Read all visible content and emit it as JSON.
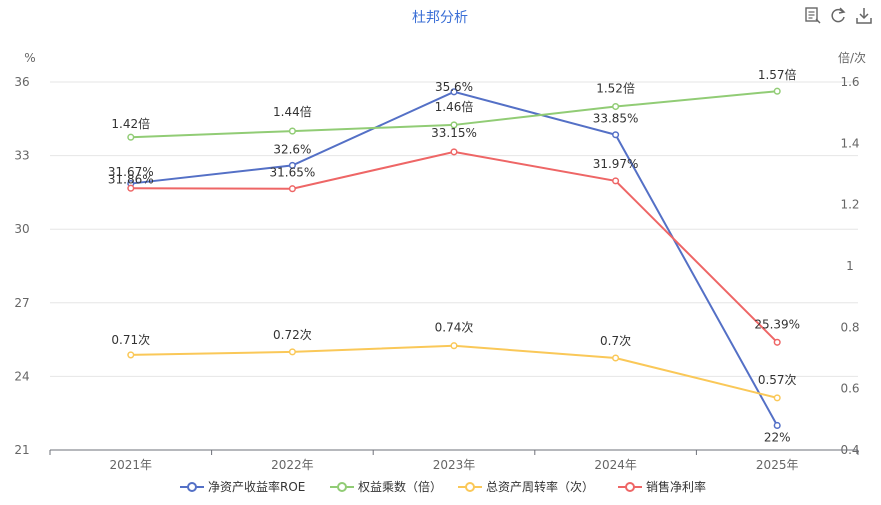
{
  "chart_data": {
    "type": "line",
    "title": "杜邦分析",
    "categories": [
      "2021年",
      "2022年",
      "2023年",
      "2024年",
      "2025年"
    ],
    "y_left": {
      "unit": "%",
      "min": 21,
      "max": 36,
      "ticks": [
        21,
        24,
        27,
        30,
        33,
        36
      ]
    },
    "y_right": {
      "unit": "倍/次",
      "min": 0.4,
      "max": 1.6,
      "ticks": [
        "0.4",
        "0.6",
        "0.8",
        "1",
        "1.2",
        "1.4",
        "1.6"
      ]
    },
    "grid": true,
    "legend_position": "bottom",
    "series": [
      {
        "name": "净资产收益率ROE",
        "axis": "left",
        "color": "#5470c6",
        "values": [
          31.86,
          32.6,
          35.6,
          33.85,
          22
        ],
        "labels": [
          "31.86%",
          "32.6%",
          "35.6%",
          "33.85%",
          "22%"
        ]
      },
      {
        "name": "权益乘数（倍）",
        "axis": "right",
        "color": "#91cc75",
        "values": [
          1.42,
          1.44,
          1.46,
          1.52,
          1.57
        ],
        "labels": [
          "1.42倍",
          "1.44倍",
          "1.46倍",
          "1.52倍",
          "1.57倍"
        ]
      },
      {
        "name": "总资产周转率（次）",
        "axis": "right",
        "color": "#fac858",
        "values": [
          0.71,
          0.72,
          0.74,
          0.7,
          0.57
        ],
        "labels": [
          "0.71次",
          "0.72次",
          "0.74次",
          "0.7次",
          "0.57次"
        ]
      },
      {
        "name": "销售净利率",
        "axis": "left",
        "color": "#ee6666",
        "values": [
          31.67,
          31.65,
          33.15,
          31.97,
          25.39
        ],
        "labels": [
          "31.67%",
          "31.65%",
          "33.15%",
          "31.97%",
          "25.39%"
        ]
      }
    ]
  },
  "toolbar": [
    {
      "name": "data-view-icon"
    },
    {
      "name": "restore-icon"
    },
    {
      "name": "save-image-icon"
    }
  ]
}
